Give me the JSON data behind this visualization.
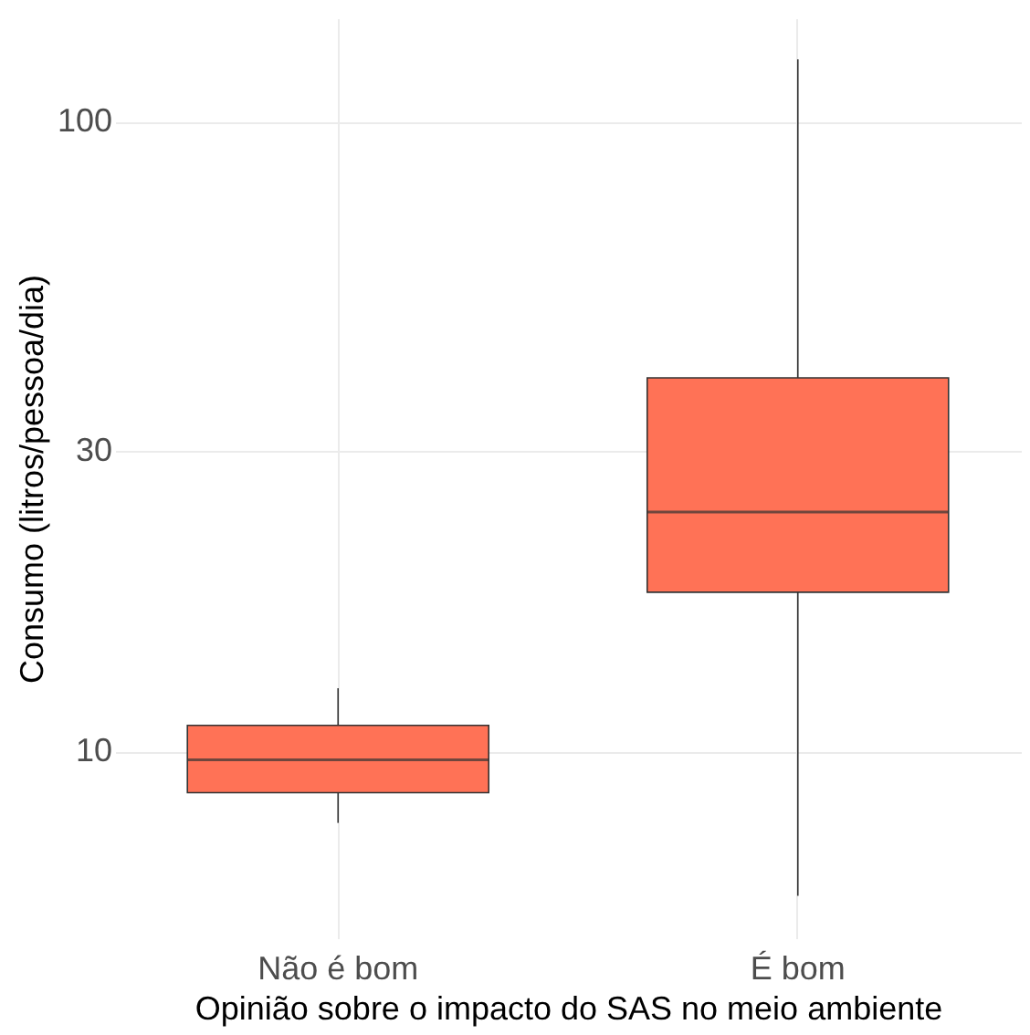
{
  "chart_data": {
    "type": "box",
    "xlabel": "Opinião sobre o impacto do SAS no meio ambiente",
    "ylabel": "Consumo (litros/pessoa/dia)",
    "categories": [
      "Não é bom",
      "É bom"
    ],
    "boxes": [
      {
        "low": 7.7,
        "q1": 8.6,
        "median": 9.7,
        "q3": 11.0,
        "high": 12.6
      },
      {
        "low": 5.9,
        "q1": 17.9,
        "median": 24.0,
        "q3": 39.2,
        "high": 125.6
      }
    ],
    "color": "#ff7256",
    "log": true,
    "ylim": [
      5.05,
      146
    ],
    "yticks": [
      10,
      30,
      100
    ],
    "grid": true
  }
}
